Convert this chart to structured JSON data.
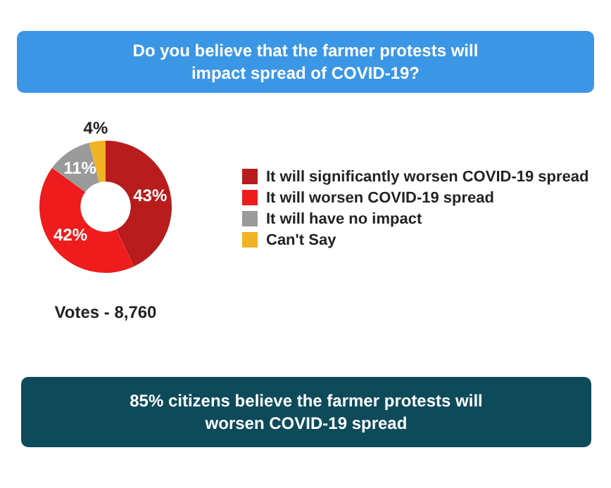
{
  "chart_data": {
    "type": "donut",
    "title": "Do you believe that the farmer protests will impact spread of COVID-19?",
    "categories": [
      "It will significantly worsen COVID-19 spread",
      "It will worsen COVID-19 spread",
      "It will have no impact",
      "Can't Say"
    ],
    "values": [
      43,
      42,
      11,
      4
    ],
    "colors": [
      "#b81c1c",
      "#ee1c1c",
      "#9a9a9a",
      "#f0b323"
    ],
    "value_labels": [
      "43%",
      "42%",
      "11%",
      "4%"
    ],
    "legend": "right",
    "annotations": [
      "Votes - 8,760",
      "85% citizens believe the farmer protests will worsen COVID-19 spread"
    ]
  }
}
